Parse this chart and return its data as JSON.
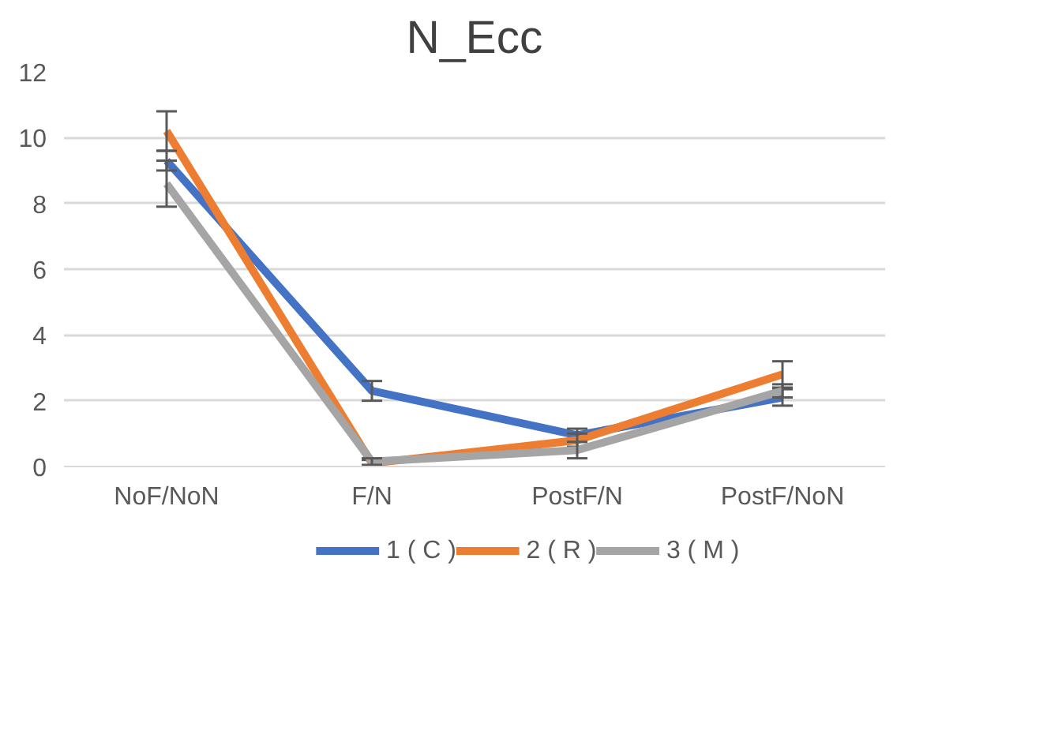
{
  "chart_data": {
    "type": "line",
    "title": "N_Ecc",
    "categories": [
      "NoF/NoN",
      "F/N",
      "PostF/N",
      "PostF/NoN"
    ],
    "series": [
      {
        "name": "1 ( C )",
        "color": "#4472c4",
        "values": [
          9.3,
          2.3,
          0.95,
          2.1
        ],
        "errors": [
          0.3,
          0.3,
          0.2,
          0.25
        ]
      },
      {
        "name": "2 ( R )",
        "color": "#ed7d31",
        "values": [
          10.2,
          0.1,
          0.8,
          2.8
        ],
        "errors": [
          0.6,
          0.1,
          0.2,
          0.4
        ]
      },
      {
        "name": "3 ( M )",
        "color": "#a5a5a5",
        "values": [
          8.6,
          0.15,
          0.5,
          2.3
        ],
        "errors": [
          0.7,
          0.1,
          0.25,
          0.2
        ]
      }
    ],
    "ylim": [
      0,
      12
    ],
    "yticks": [
      0,
      2,
      4,
      6,
      8,
      10,
      12
    ],
    "grid": "y",
    "legend": "bottom",
    "marker": "none",
    "line_style": "solid"
  }
}
